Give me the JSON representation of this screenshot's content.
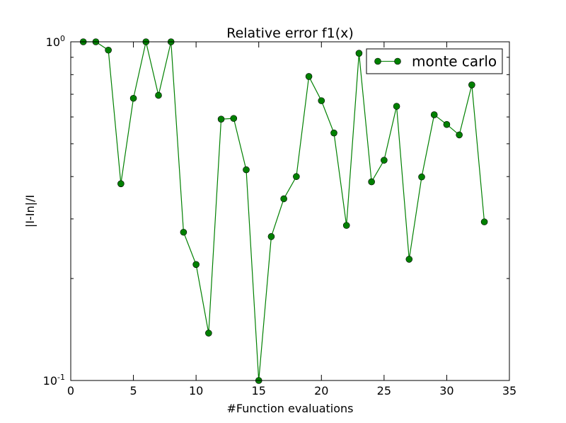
{
  "chart_data": {
    "type": "line",
    "title": "Relative error f1(x)",
    "xlabel": "#Function evaluations",
    "ylabel": "|I-In|/I",
    "xlim": [
      0,
      35
    ],
    "ylim": [
      0.1,
      1.0
    ],
    "yscale": "log",
    "xticks": [
      "0",
      "5",
      "10",
      "15",
      "20",
      "25",
      "30",
      "35"
    ],
    "yticks": [
      {
        "value": 0.1,
        "base": "10",
        "exp": "-1"
      },
      {
        "value": 1.0,
        "base": "10",
        "exp": "0"
      }
    ],
    "legend_position": "top-right",
    "series": [
      {
        "name": "monte carlo",
        "color": "#008000",
        "marker": "circle",
        "x": [
          1,
          2,
          3,
          4,
          5,
          6,
          7,
          8,
          9,
          10,
          11,
          12,
          13,
          14,
          15,
          16,
          17,
          18,
          19,
          20,
          21,
          22,
          23,
          24,
          25,
          26,
          27,
          28,
          29,
          30,
          31,
          32,
          33
        ],
        "y": [
          1.0,
          1.0,
          0.945,
          0.381,
          0.681,
          1.0,
          0.695,
          1.0,
          0.274,
          0.22,
          0.138,
          0.591,
          0.594,
          0.419,
          0.1,
          0.266,
          0.344,
          0.4,
          0.79,
          0.67,
          0.538,
          0.287,
          0.925,
          0.386,
          0.447,
          0.645,
          0.228,
          0.399,
          0.609,
          0.57,
          0.531,
          0.746,
          0.294
        ]
      }
    ]
  }
}
